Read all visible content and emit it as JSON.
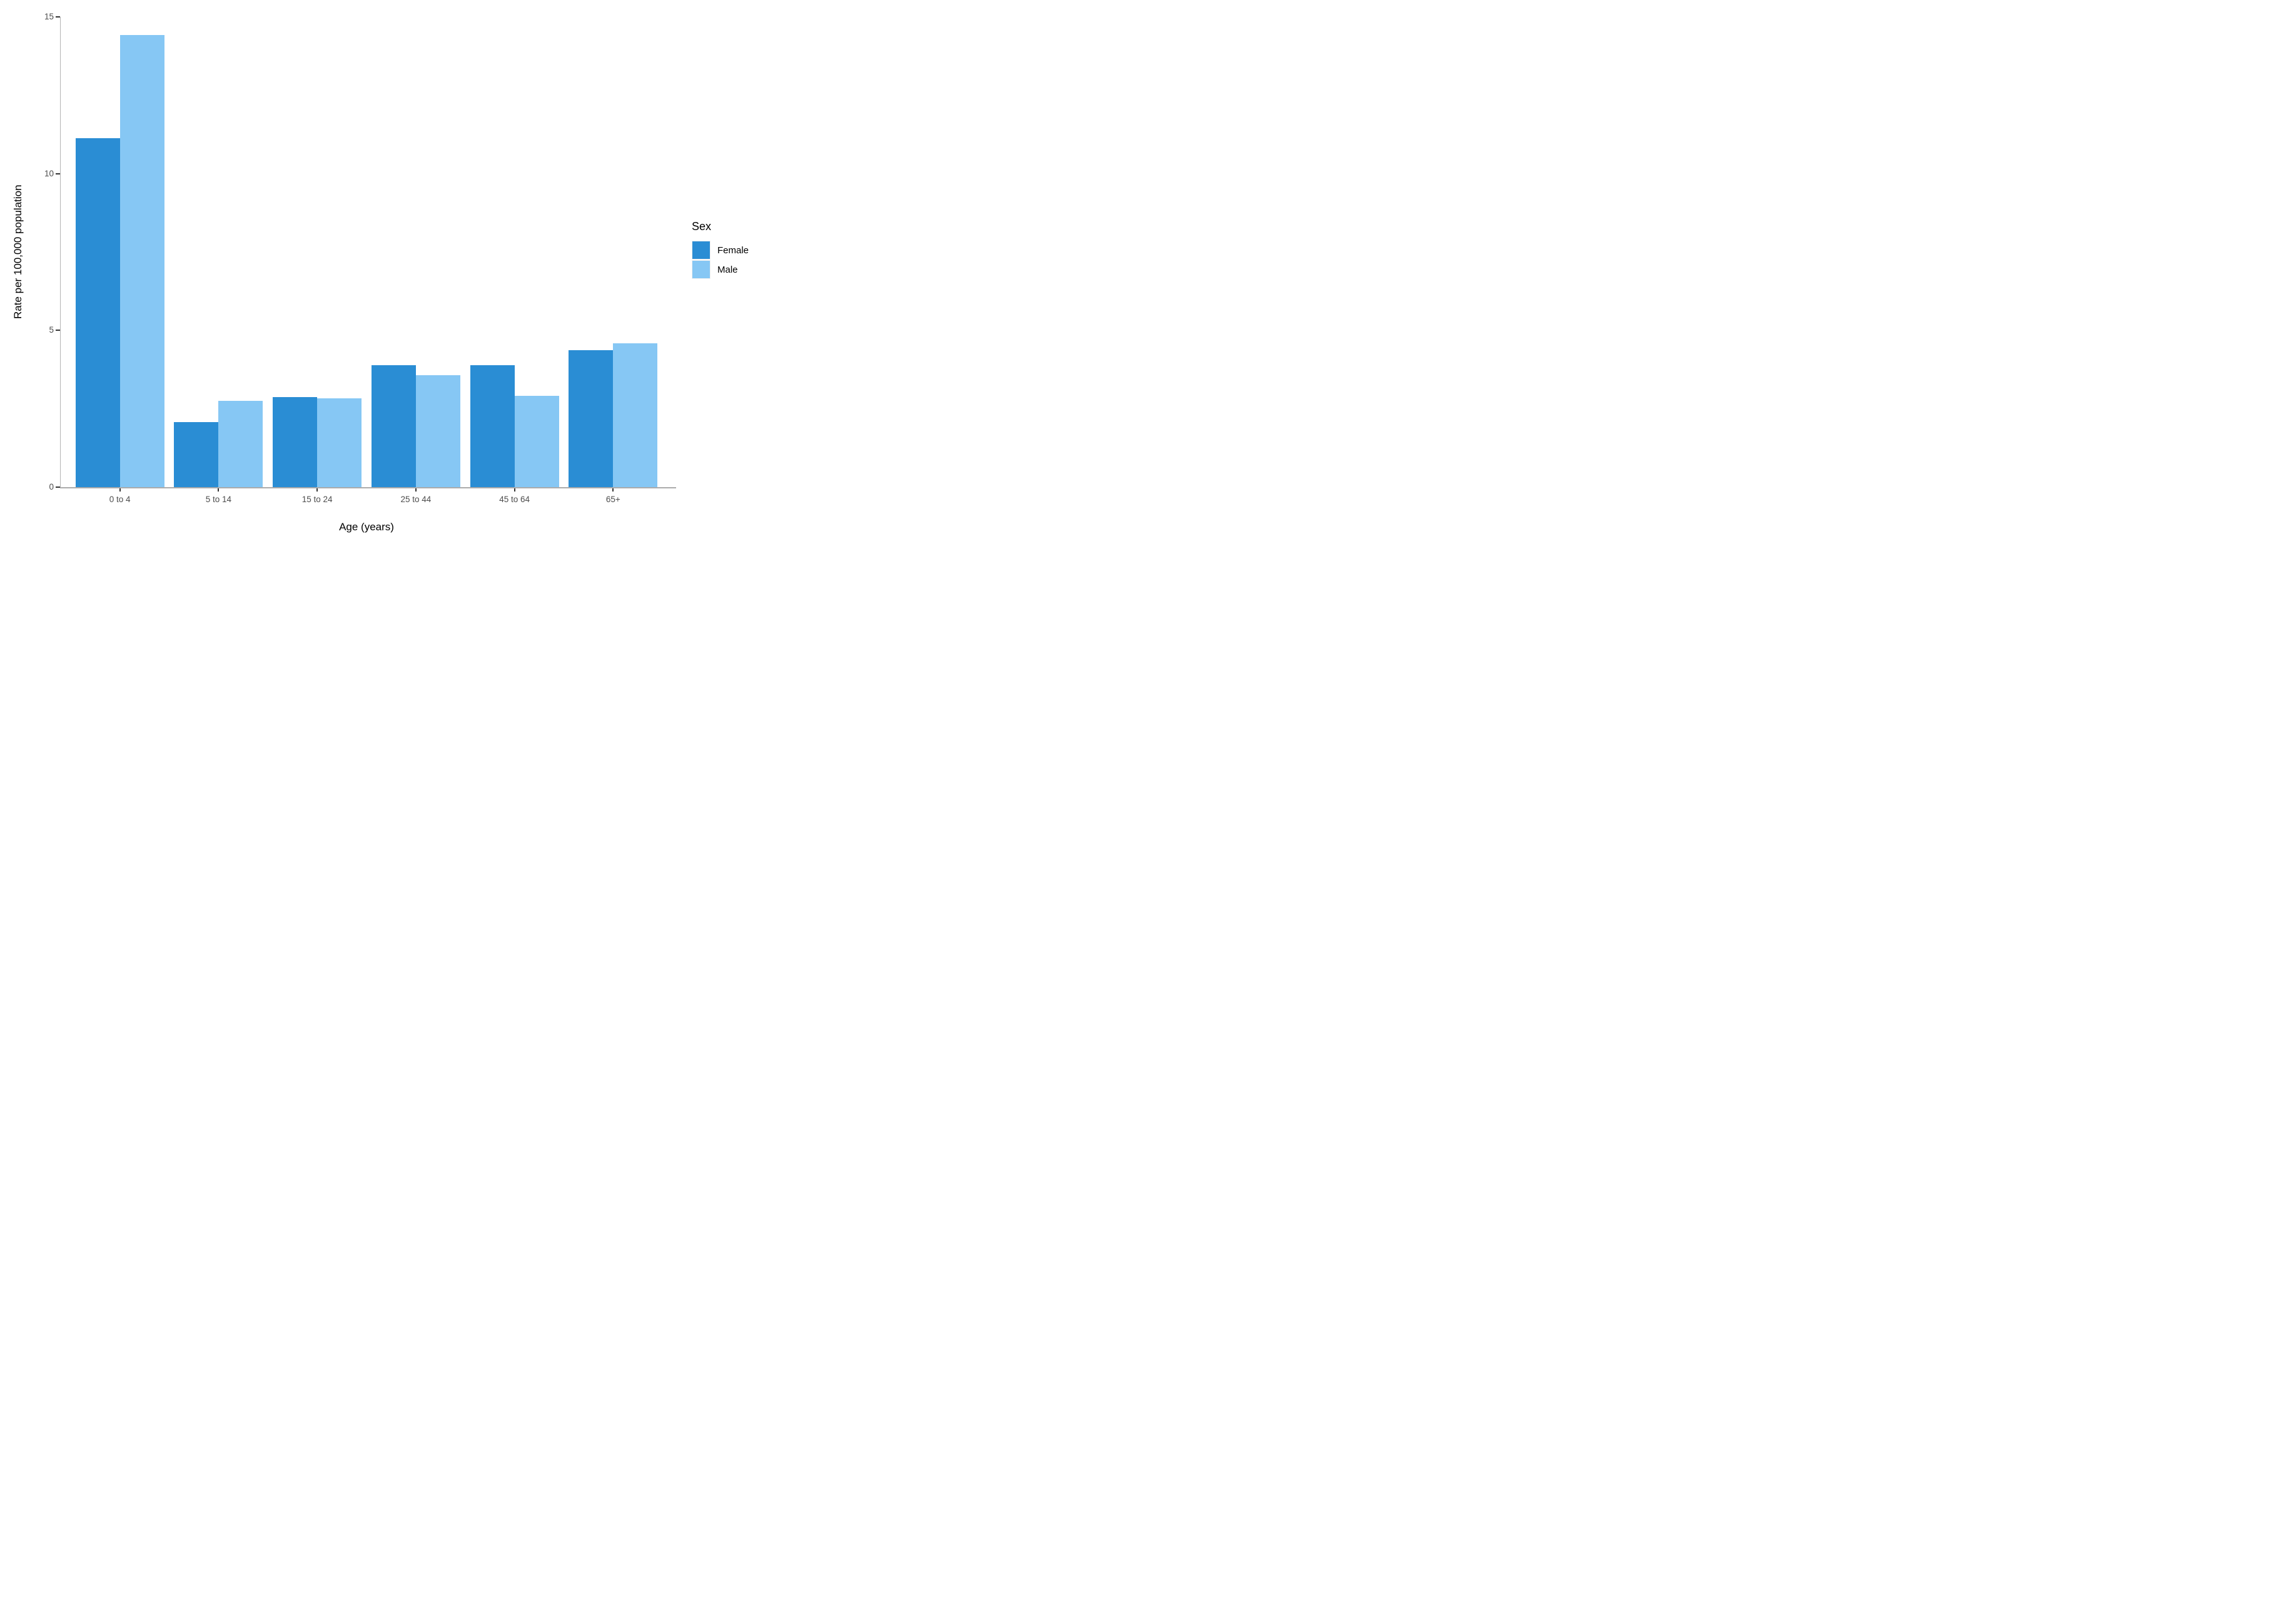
{
  "chart_data": {
    "type": "bar",
    "bar_mode": "grouped",
    "title": "",
    "xlabel": "Age (years)",
    "ylabel": "Rate per 100,000 population",
    "categories": [
      "0 to 4",
      "5 to 14",
      "15 to 24",
      "25 to 44",
      "45 to 64",
      "65+"
    ],
    "series": [
      {
        "name": "Female",
        "color": "#2a8dd4",
        "values": [
          11.13,
          2.07,
          2.87,
          3.88,
          3.88,
          4.36
        ]
      },
      {
        "name": "Male",
        "color": "#86c7f4",
        "values": [
          14.43,
          2.75,
          2.84,
          3.57,
          2.92,
          4.58
        ]
      }
    ],
    "ylim": [
      0,
      15
    ],
    "yticks": [
      0,
      5,
      10,
      15
    ],
    "grid": false,
    "legend": {
      "title": "Sex",
      "position": "right",
      "entries": [
        "Female",
        "Male"
      ]
    },
    "colors": {
      "background": "#ffffff",
      "axis_line": "#b3b3b3",
      "baseline": "#ababab",
      "tick_mark": "#333333",
      "tick_label": "#4d4d4d",
      "axis_title": "#000000",
      "legend_key_bg": "#f0f0f0"
    }
  }
}
